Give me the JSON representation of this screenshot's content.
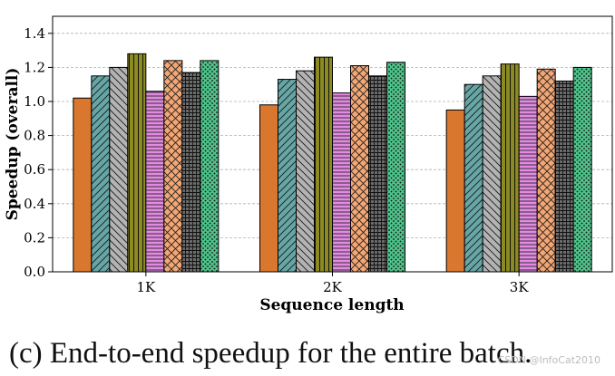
{
  "chart_data": {
    "type": "bar",
    "ylabel": "Speedup (overall)",
    "xlabel": "Sequence length",
    "ylim": [
      0,
      1.5
    ],
    "yticks": [
      "0.0",
      "0.2",
      "0.4",
      "0.6",
      "0.8",
      "1.0",
      "1.2",
      "1.4"
    ],
    "ytick_values": [
      0.0,
      0.2,
      0.4,
      0.6,
      0.8,
      1.0,
      1.2,
      1.4
    ],
    "grid": "horizontal dashed",
    "categories": [
      "1K",
      "2K",
      "3K"
    ],
    "series": [
      {
        "name": "",
        "color": "#d9772f",
        "pattern": "solid",
        "values": [
          1.02,
          0.98,
          0.95
        ]
      },
      {
        "name": "",
        "color": "#66a6a6",
        "pattern": "diag",
        "values": [
          1.15,
          1.13,
          1.1
        ]
      },
      {
        "name": "",
        "color": "#b3b3b3",
        "pattern": "backdiag",
        "values": [
          1.2,
          1.18,
          1.15
        ]
      },
      {
        "name": "",
        "color": "#8b8b22",
        "pattern": "vert",
        "values": [
          1.28,
          1.26,
          1.22
        ]
      },
      {
        "name": "",
        "color": "#e38ae3",
        "pattern": "horiz",
        "values": [
          1.06,
          1.05,
          1.03
        ]
      },
      {
        "name": "",
        "color": "#f4a673",
        "pattern": "cross",
        "values": [
          1.24,
          1.21,
          1.19
        ]
      },
      {
        "name": "",
        "color": "#6b6b6b",
        "pattern": "grid",
        "values": [
          1.17,
          1.15,
          1.12
        ]
      },
      {
        "name": "",
        "color": "#4fc38a",
        "pattern": "dots",
        "values": [
          1.24,
          1.23,
          1.2
        ]
      }
    ]
  },
  "caption": "(c) End-to-end speedup for the entire batch.",
  "watermark": "CSDN @InfoCat2010"
}
